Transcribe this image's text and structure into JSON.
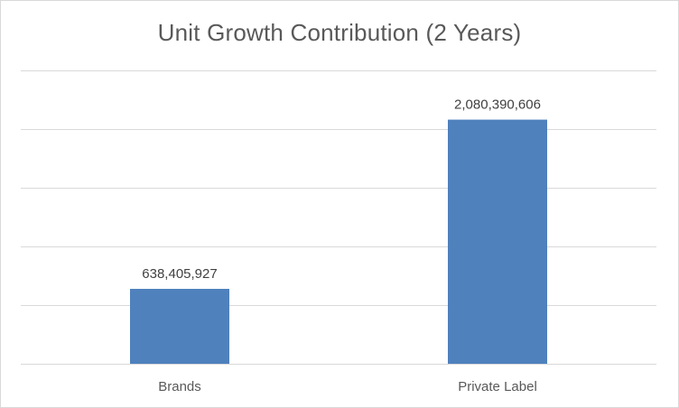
{
  "chart_data": {
    "type": "bar",
    "title": "Unit Growth Contribution (2 Years)",
    "categories": [
      "Brands",
      "Private Label"
    ],
    "values": [
      638405927,
      2080390606
    ],
    "data_labels": [
      "638,405,927",
      "2,080,390,606"
    ],
    "xlabel": "",
    "ylabel": "",
    "ylim": [
      0,
      2500000000
    ],
    "grid": true,
    "legend": "none",
    "bar_color": "#4f81bd"
  }
}
